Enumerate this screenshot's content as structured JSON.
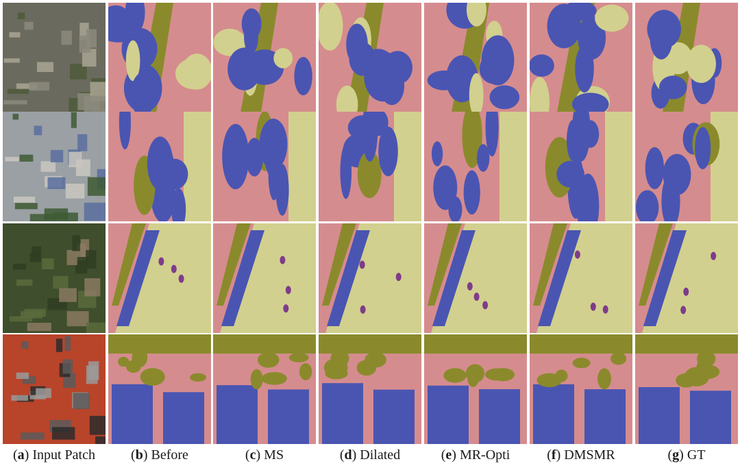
{
  "figure": {
    "colors": {
      "building": "#4a55b2",
      "road": "#d58c8e",
      "vegetation": "#d2d08e",
      "tree": "#8a8a2c",
      "other": "#7e3c8a"
    },
    "columns": [
      {
        "letter": "a",
        "label": "Input Patch"
      },
      {
        "letter": "b",
        "label": "Before"
      },
      {
        "letter": "c",
        "label": "MS"
      },
      {
        "letter": "d",
        "label": "Dilated"
      },
      {
        "letter": "e",
        "label": "MR-Opti"
      },
      {
        "letter": "f",
        "label": "DMSMR"
      },
      {
        "letter": "g",
        "label": "GT"
      }
    ]
  }
}
